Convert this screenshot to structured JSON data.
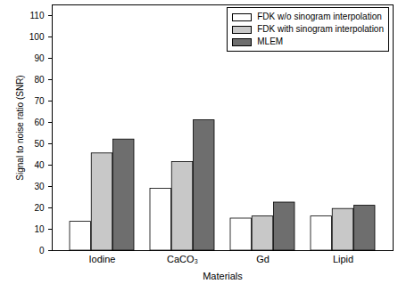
{
  "chart_data": {
    "type": "bar",
    "x_label": "Materials",
    "y_label": "Signal to noise ratio (SNR)",
    "categories": [
      "Iodine",
      "CaCO₃",
      "Gd",
      "Lipid"
    ],
    "series": [
      {
        "name": "FDK w/o sinogram interpolation",
        "color": "#ffffff",
        "values": [
          13.5,
          29,
          15,
          16
        ]
      },
      {
        "name": "FDK with sinogram interpolation",
        "color": "#c8c8c8",
        "values": [
          45.5,
          41.5,
          16,
          19.5
        ]
      },
      {
        "name": "MLEM",
        "color": "#6e6e6e",
        "values": [
          52,
          61,
          22.5,
          21
        ]
      }
    ],
    "ylim": [
      0,
      115
    ],
    "yticks": [
      0,
      10,
      20,
      30,
      40,
      50,
      60,
      70,
      80,
      90,
      100,
      110
    ],
    "grid": false,
    "legend": "top-right"
  }
}
